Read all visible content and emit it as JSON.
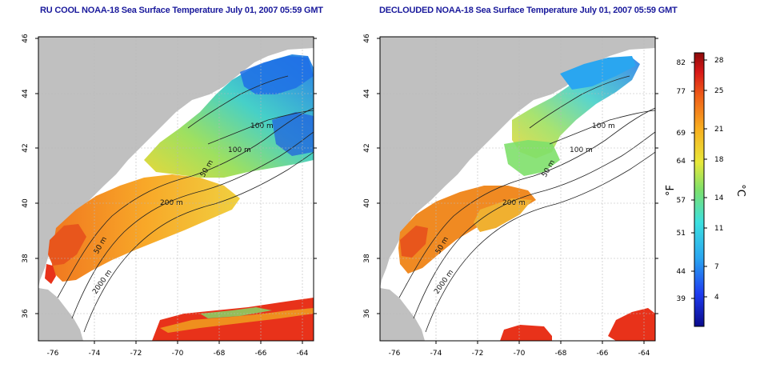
{
  "panels": [
    {
      "title": "RU COOL NOAA-18 Sea Surface Temperature July 01, 2007 05:59 GMT",
      "contour_labels": [
        "100 m",
        "100 m",
        "50 m",
        "200 m",
        "50 m",
        "2000 m"
      ]
    },
    {
      "title": "DECLOUDED NOAA-18 Sea Surface Temperature July 01, 2007 05:59 GMT",
      "contour_labels": [
        "100 m",
        "100 m",
        "50 m",
        "200 m",
        "50 m",
        "2000 m"
      ]
    }
  ],
  "axes": {
    "lat_ticks": [
      "46",
      "44",
      "42",
      "40",
      "38",
      "36"
    ],
    "lon_ticks": [
      "-76",
      "-74",
      "-72",
      "-70",
      "-68",
      "-66",
      "-64"
    ]
  },
  "colorbar": {
    "fahrenheit_ticks": [
      "82",
      "77",
      "69",
      "64",
      "57",
      "51",
      "44",
      "39"
    ],
    "celsius_ticks": [
      "28",
      "25",
      "21",
      "18",
      "14",
      "11",
      "7",
      "4"
    ],
    "fahrenheit_unit": "°F",
    "celsius_unit": "°C"
  },
  "colors": {
    "land": "#c0c0c0",
    "title": "#1a1a9c",
    "warm": "#e8321a",
    "cool": "#1e6fe6"
  }
}
